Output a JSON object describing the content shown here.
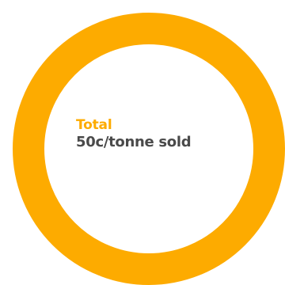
{
  "chart_data": {
    "type": "pie",
    "variant": "donut",
    "categories": [
      "Total"
    ],
    "values": [
      50
    ],
    "unit": "c/tonne sold",
    "colors": {
      "ring": "#FDAB00",
      "label_title": "#FDAB00",
      "label_value": "#4A4A4A"
    }
  },
  "center_label": {
    "title": "Total",
    "value": "50c/tonne sold"
  }
}
